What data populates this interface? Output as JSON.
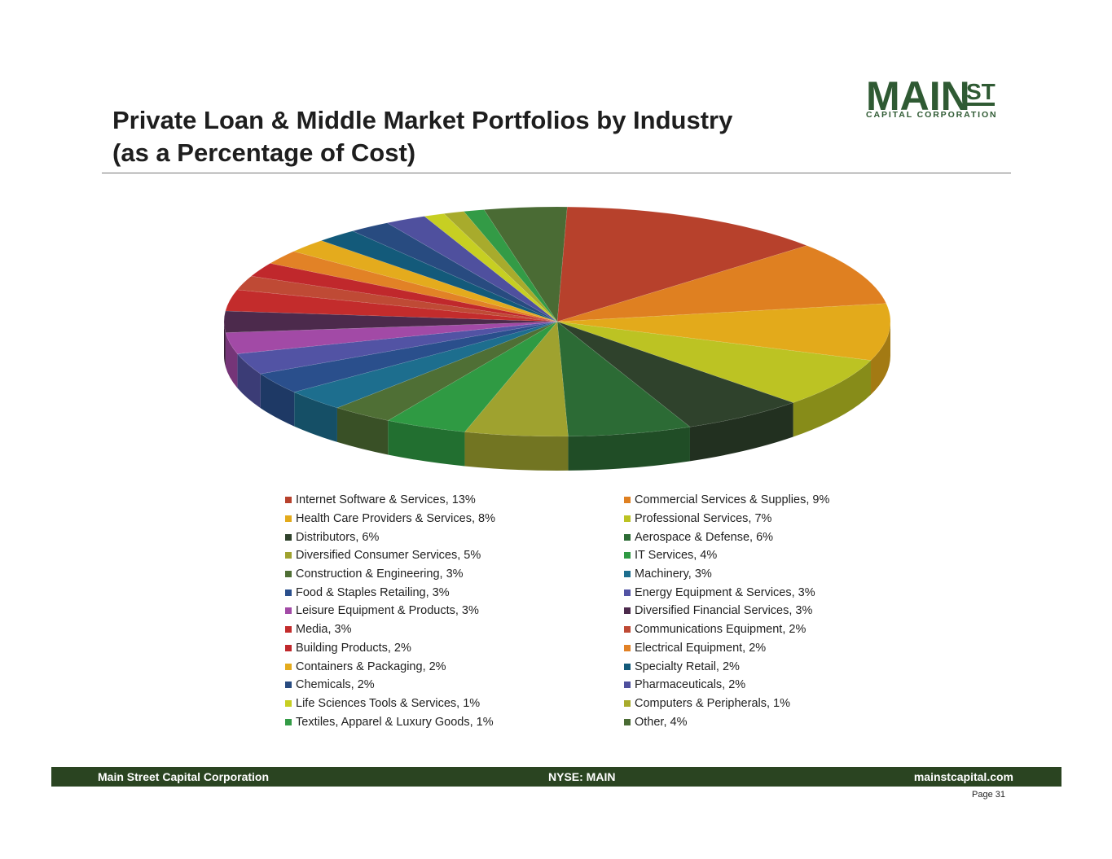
{
  "title": {
    "line1": "Private Loan & Middle Market Portfolios by Industry",
    "line2": "(as a Percentage of Cost)"
  },
  "logo": {
    "main": "MAIN",
    "st": "ST",
    "sub": "CAPITAL CORPORATION"
  },
  "footer": {
    "left": "Main Street Capital Corporation",
    "center": "NYSE: MAIN",
    "right": "mainstcapital.com",
    "page": "Page  31"
  },
  "chart_data": {
    "type": "pie",
    "style": "3d",
    "title": "",
    "legend_position": "bottom",
    "slices": [
      {
        "label": "Internet Software & Services, 13%",
        "name": "Internet Software & Services",
        "value": 13,
        "color": "#b7412c"
      },
      {
        "label": "Commercial Services & Supplies, 9%",
        "name": "Commercial Services & Supplies",
        "value": 9,
        "color": "#df8021"
      },
      {
        "label": "Health Care Providers & Services, 8%",
        "name": "Health Care Providers & Services",
        "value": 8,
        "color": "#e3aa1b"
      },
      {
        "label": "Professional Services, 7%",
        "name": "Professional Services",
        "value": 7,
        "color": "#bcc323"
      },
      {
        "label": "Distributors, 6%",
        "name": "Distributors",
        "value": 6,
        "color": "#2f422c"
      },
      {
        "label": "Aerospace & Defense, 6%",
        "name": "Aerospace & Defense",
        "value": 6,
        "color": "#2c6b35"
      },
      {
        "label": "Diversified Consumer Services, 5%",
        "name": "Diversified Consumer Services",
        "value": 5,
        "color": "#9fa22f"
      },
      {
        "label": "IT Services, 4%",
        "name": "IT Services",
        "value": 4,
        "color": "#2f9a43"
      },
      {
        "label": "Construction & Engineering, 3%",
        "name": "Construction & Engineering",
        "value": 3,
        "color": "#4f6f35"
      },
      {
        "label": "Machinery, 3%",
        "name": "Machinery",
        "value": 3,
        "color": "#1d6e8e"
      },
      {
        "label": "Food & Staples Retailing, 3%",
        "name": "Food & Staples Retailing",
        "value": 3,
        "color": "#2a4f8c"
      },
      {
        "label": "Energy Equipment & Services, 3%",
        "name": "Energy Equipment & Services",
        "value": 3,
        "color": "#5253a4"
      },
      {
        "label": "Leisure Equipment & Products, 3%",
        "name": "Leisure Equipment & Products",
        "value": 3,
        "color": "#a24aa6"
      },
      {
        "label": "Diversified Financial Services, 3%",
        "name": "Diversified Financial Services",
        "value": 3,
        "color": "#4c2a4c"
      },
      {
        "label": "Media, 3%",
        "name": "Media",
        "value": 3,
        "color": "#c32c2c"
      },
      {
        "label": "Communications Equipment, 2%",
        "name": "Communications Equipment",
        "value": 2,
        "color": "#bf4a35"
      },
      {
        "label": "Building Products, 2%",
        "name": "Building Products",
        "value": 2,
        "color": "#c0282c"
      },
      {
        "label": "Electrical Equipment, 2%",
        "name": "Electrical Equipment",
        "value": 2,
        "color": "#e28226"
      },
      {
        "label": "Containers & Packaging, 2%",
        "name": "Containers & Packaging",
        "value": 2,
        "color": "#e4ab1d"
      },
      {
        "label": "Specialty Retail, 2%",
        "name": "Specialty Retail",
        "value": 2,
        "color": "#135a7a"
      },
      {
        "label": "Chemicals, 2%",
        "name": "Chemicals",
        "value": 2,
        "color": "#284b80"
      },
      {
        "label": "Pharmaceuticals, 2%",
        "name": "Pharmaceuticals",
        "value": 2,
        "color": "#4f509e"
      },
      {
        "label": "Life Sciences Tools & Services, 1%",
        "name": "Life Sciences Tools & Services",
        "value": 1,
        "color": "#c7cf22"
      },
      {
        "label": "Computers & Peripherals, 1%",
        "name": "Computers & Peripherals",
        "value": 1,
        "color": "#a8ab2c"
      },
      {
        "label": "Textiles, Apparel & Luxury Goods, 1%",
        "name": "Textiles, Apparel & Luxury Goods",
        "value": 1,
        "color": "#339b46"
      },
      {
        "label": "Other, 4%",
        "name": "Other",
        "value": 4,
        "color": "#4a6b34"
      }
    ]
  }
}
